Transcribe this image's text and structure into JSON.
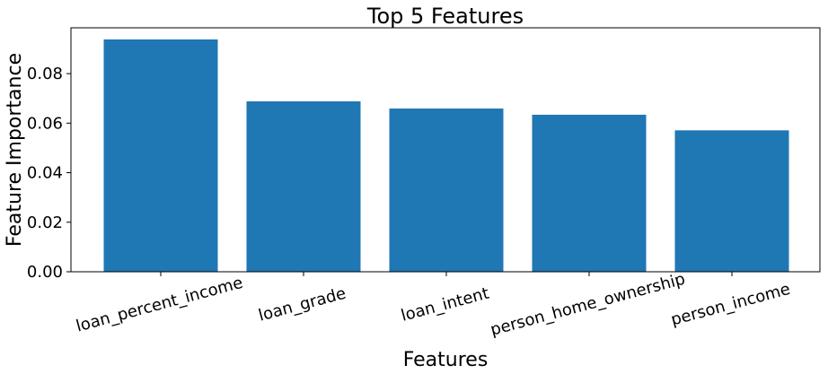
{
  "chart_data": {
    "type": "bar",
    "title": "Top 5 Features",
    "xlabel": "Features",
    "ylabel": "Feature Importance",
    "categories": [
      "loan_percent_income",
      "loan_grade",
      "loan_intent",
      "person_home_ownership",
      "person_income"
    ],
    "values": [
      0.0938,
      0.0688,
      0.0659,
      0.0634,
      0.0571
    ],
    "ylim": [
      0,
      0.0985
    ],
    "yticks": [
      0.0,
      0.02,
      0.04,
      0.06,
      0.08
    ],
    "ytick_labels": [
      "0.00",
      "0.02",
      "0.04",
      "0.06",
      "0.08"
    ],
    "bar_color": "#1f77b4",
    "grid": false,
    "x_tick_rotation_deg": -15
  }
}
